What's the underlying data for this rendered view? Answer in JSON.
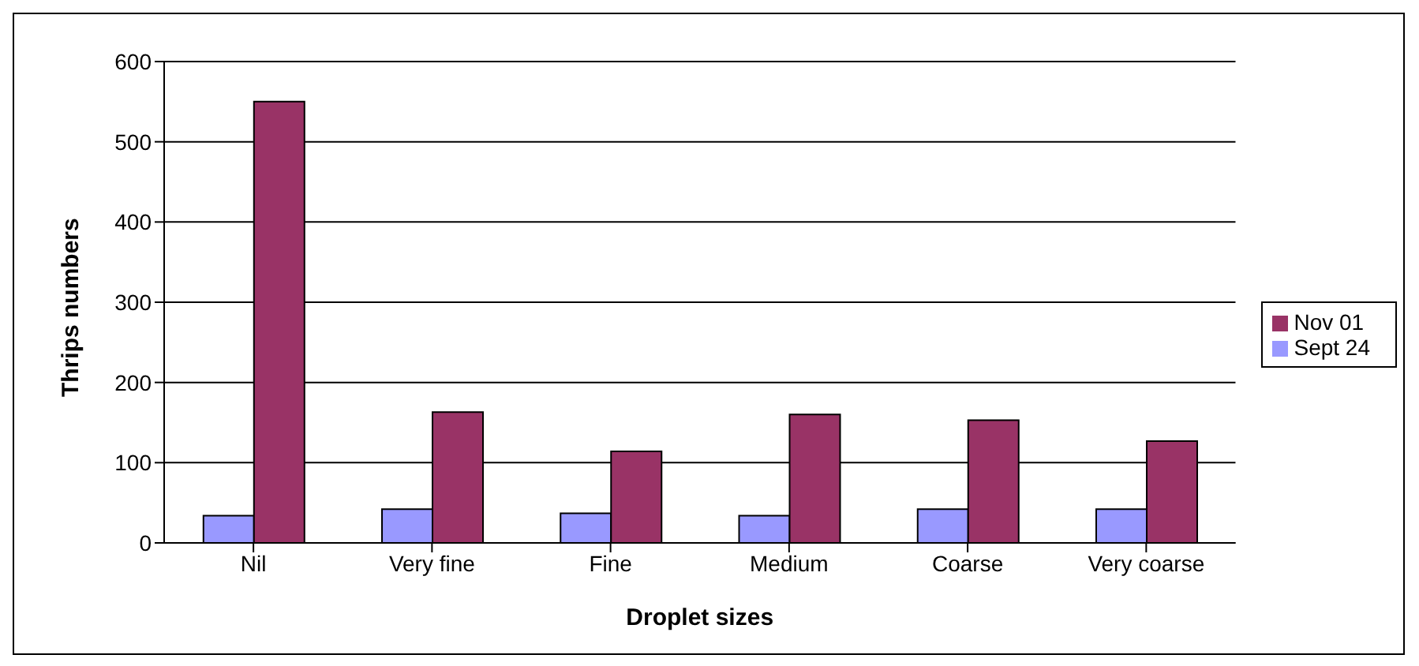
{
  "chart_data": {
    "type": "bar",
    "xlabel": "Droplet sizes",
    "ylabel": "Thrips numbers",
    "categories": [
      "Nil",
      "Very fine",
      "Fine",
      "Medium",
      "Coarse",
      "Very coarse"
    ],
    "series": [
      {
        "name": "Sept 24",
        "color": "#9999ff",
        "values": [
          34,
          42,
          37,
          34,
          42,
          42
        ]
      },
      {
        "name": "Nov 01",
        "color": "#993366",
        "values": [
          550,
          163,
          114,
          160,
          153,
          127
        ]
      }
    ],
    "ylim": [
      0,
      600
    ],
    "yticks": [
      0,
      100,
      200,
      300,
      400,
      500,
      600
    ],
    "grid": "y",
    "legend": "right"
  }
}
